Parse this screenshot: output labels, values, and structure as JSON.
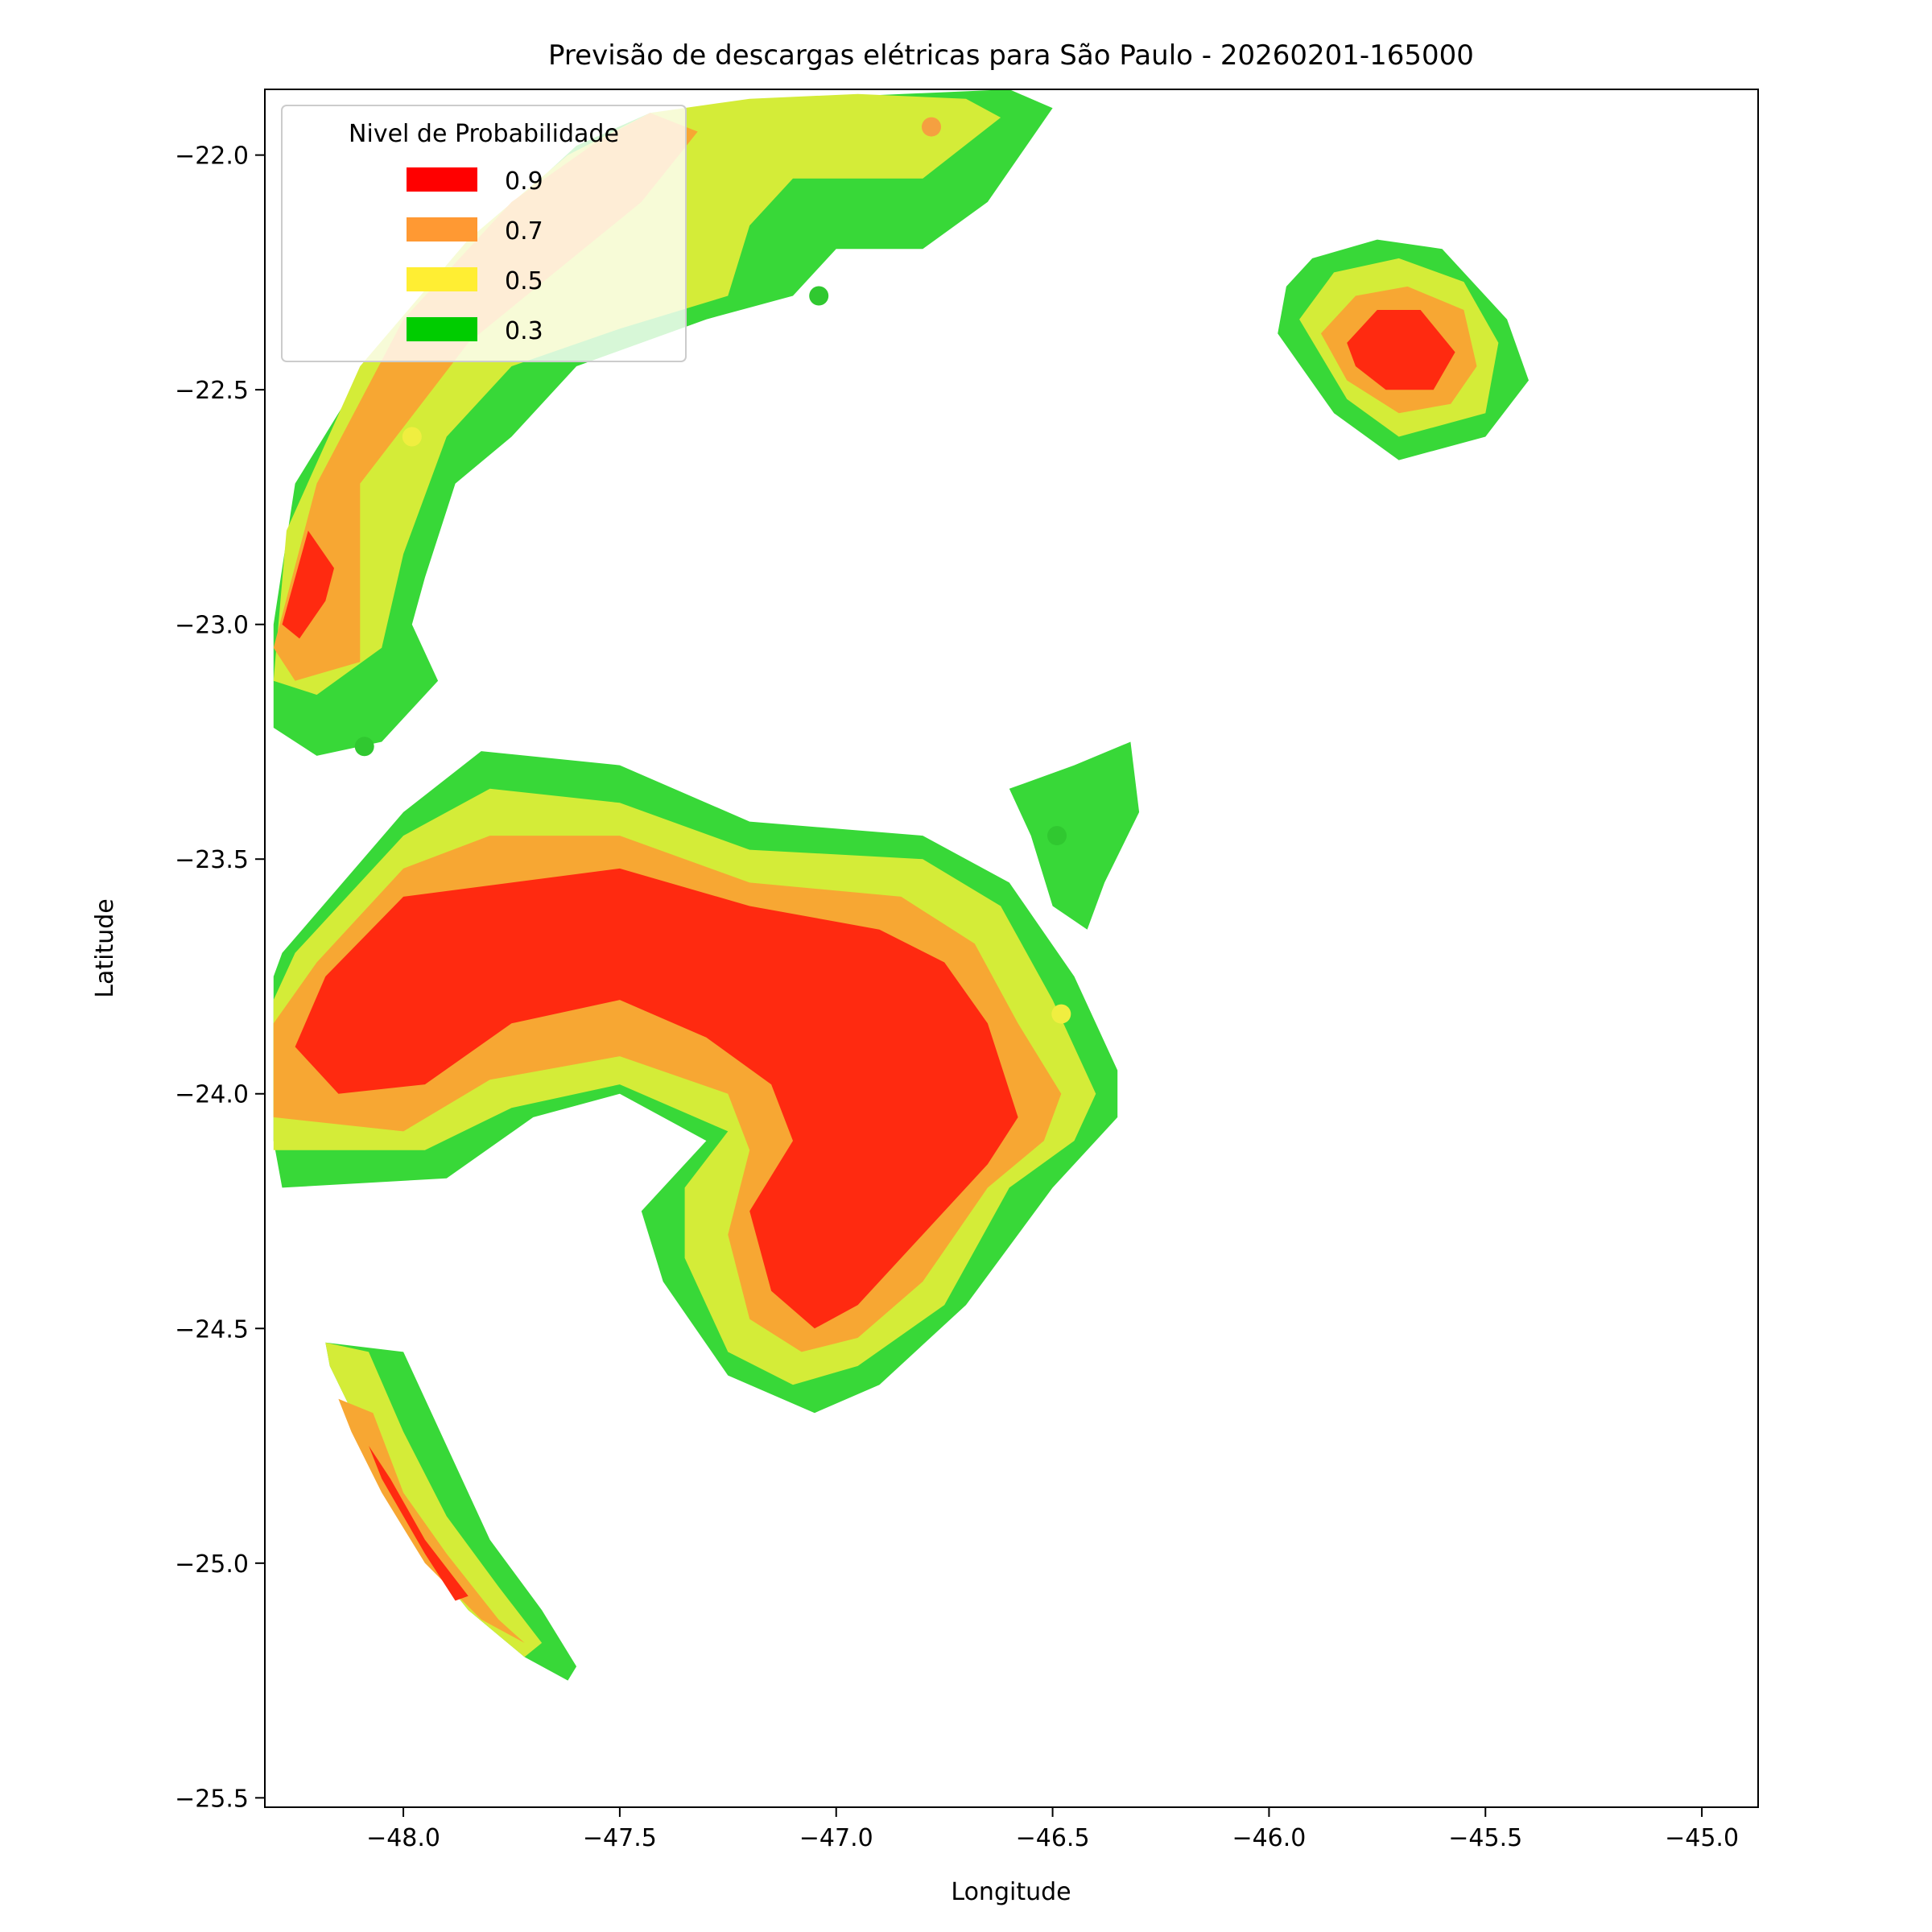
{
  "chart_data": {
    "type": "contour",
    "title": "Previsão de descargas elétricas para São Paulo - 20260201-165000",
    "xlabel": "Longitude",
    "ylabel": "Latitude",
    "xlim": [
      -48.32,
      -44.87
    ],
    "ylim": [
      -25.52,
      -21.86
    ],
    "xticks": [
      -48.0,
      -47.5,
      -47.0,
      -46.5,
      -46.0,
      -45.5,
      -45.0
    ],
    "xtick_labels": [
      "−48.0",
      "−47.5",
      "−47.0",
      "−46.5",
      "−46.0",
      "−45.5",
      "−45.0"
    ],
    "yticks": [
      -22.0,
      -22.5,
      -23.0,
      -23.5,
      -24.0,
      -24.5,
      -25.0,
      -25.5
    ],
    "ytick_labels": [
      "−22.0",
      "−22.5",
      "−23.0",
      "−23.5",
      "−24.0",
      "−24.5",
      "−25.0",
      "−25.5"
    ],
    "grid": false,
    "legend": {
      "title": "Nivel de Probabilidade",
      "placement": "top-left",
      "entries": [
        {
          "label": "0.9",
          "color": "#ff0000"
        },
        {
          "label": "0.7",
          "color": "#ff9933"
        },
        {
          "label": "0.5",
          "color": "#ffee33"
        },
        {
          "label": "0.3",
          "color": "#00cc00"
        }
      ]
    },
    "level_colors": {
      "0.3": "#38d838",
      "0.5": "#d4ec38",
      "0.7": "#f7a733",
      "0.9": "#ff2a10"
    },
    "regions": [
      {
        "id": "north-arc",
        "level": 0.3,
        "polygon": [
          [
            -47.43,
            -21.91
          ],
          [
            -47.1,
            -21.88
          ],
          [
            -46.6,
            -21.86
          ],
          [
            -46.5,
            -21.9
          ],
          [
            -46.65,
            -22.1
          ],
          [
            -46.8,
            -22.2
          ],
          [
            -47.0,
            -22.2
          ],
          [
            -47.1,
            -22.3
          ],
          [
            -47.3,
            -22.35
          ],
          [
            -47.6,
            -22.45
          ],
          [
            -47.75,
            -22.6
          ],
          [
            -47.88,
            -22.7
          ],
          [
            -47.95,
            -22.9
          ],
          [
            -47.98,
            -23.0
          ],
          [
            -47.92,
            -23.12
          ],
          [
            -48.05,
            -23.25
          ],
          [
            -48.2,
            -23.28
          ],
          [
            -48.3,
            -23.22
          ],
          [
            -48.3,
            -23.0
          ],
          [
            -48.25,
            -22.7
          ],
          [
            -48.05,
            -22.4
          ],
          [
            -47.8,
            -22.15
          ],
          [
            -47.6,
            -21.98
          ]
        ]
      },
      {
        "id": "north-arc",
        "level": 0.5,
        "polygon": [
          [
            -47.43,
            -21.91
          ],
          [
            -47.2,
            -21.88
          ],
          [
            -46.95,
            -21.87
          ],
          [
            -46.7,
            -21.88
          ],
          [
            -46.62,
            -21.92
          ],
          [
            -46.8,
            -22.05
          ],
          [
            -47.1,
            -22.05
          ],
          [
            -47.2,
            -22.15
          ],
          [
            -47.25,
            -22.3
          ],
          [
            -47.5,
            -22.37
          ],
          [
            -47.75,
            -22.45
          ],
          [
            -47.9,
            -22.6
          ],
          [
            -48.0,
            -22.85
          ],
          [
            -48.05,
            -23.05
          ],
          [
            -48.2,
            -23.15
          ],
          [
            -48.3,
            -23.12
          ],
          [
            -48.27,
            -22.8
          ],
          [
            -48.1,
            -22.45
          ],
          [
            -47.85,
            -22.18
          ],
          [
            -47.62,
            -22.0
          ]
        ]
      },
      {
        "id": "north-arc",
        "level": 0.7,
        "polygon": [
          [
            -47.43,
            -21.91
          ],
          [
            -47.32,
            -21.95
          ],
          [
            -47.45,
            -22.1
          ],
          [
            -47.65,
            -22.25
          ],
          [
            -47.85,
            -22.4
          ],
          [
            -48.1,
            -22.7
          ],
          [
            -48.1,
            -23.08
          ],
          [
            -48.25,
            -23.12
          ],
          [
            -48.3,
            -23.05
          ],
          [
            -48.2,
            -22.7
          ],
          [
            -48.0,
            -22.35
          ],
          [
            -47.75,
            -22.1
          ],
          [
            -47.55,
            -21.97
          ]
        ]
      },
      {
        "id": "north-arc",
        "level": 0.9,
        "polygon": [
          [
            -48.16,
            -22.88
          ],
          [
            -48.18,
            -22.95
          ],
          [
            -48.24,
            -23.03
          ],
          [
            -48.28,
            -23.0
          ],
          [
            -48.22,
            -22.8
          ]
        ]
      },
      {
        "id": "northeast-cell",
        "level": 0.3,
        "polygon": [
          [
            -45.9,
            -22.22
          ],
          [
            -45.75,
            -22.18
          ],
          [
            -45.6,
            -22.2
          ],
          [
            -45.45,
            -22.35
          ],
          [
            -45.4,
            -22.48
          ],
          [
            -45.5,
            -22.6
          ],
          [
            -45.7,
            -22.65
          ],
          [
            -45.85,
            -22.55
          ],
          [
            -45.98,
            -22.38
          ],
          [
            -45.96,
            -22.28
          ]
        ]
      },
      {
        "id": "northeast-cell",
        "level": 0.5,
        "polygon": [
          [
            -45.85,
            -22.25
          ],
          [
            -45.7,
            -22.22
          ],
          [
            -45.55,
            -22.27
          ],
          [
            -45.47,
            -22.4
          ],
          [
            -45.5,
            -22.55
          ],
          [
            -45.7,
            -22.6
          ],
          [
            -45.82,
            -22.52
          ],
          [
            -45.93,
            -22.35
          ]
        ]
      },
      {
        "id": "northeast-cell",
        "level": 0.7,
        "polygon": [
          [
            -45.8,
            -22.3
          ],
          [
            -45.68,
            -22.28
          ],
          [
            -45.55,
            -22.33
          ],
          [
            -45.52,
            -22.45
          ],
          [
            -45.58,
            -22.53
          ],
          [
            -45.7,
            -22.55
          ],
          [
            -45.82,
            -22.48
          ],
          [
            -45.88,
            -22.38
          ]
        ]
      },
      {
        "id": "northeast-cell",
        "level": 0.9,
        "polygon": [
          [
            -45.75,
            -22.33
          ],
          [
            -45.65,
            -22.33
          ],
          [
            -45.57,
            -22.42
          ],
          [
            -45.62,
            -22.5
          ],
          [
            -45.73,
            -22.5
          ],
          [
            -45.8,
            -22.45
          ],
          [
            -45.82,
            -22.4
          ]
        ]
      },
      {
        "id": "central-hook",
        "level": 0.3,
        "polygon": [
          [
            -48.28,
            -23.7
          ],
          [
            -48.0,
            -23.4
          ],
          [
            -47.82,
            -23.27
          ],
          [
            -47.5,
            -23.3
          ],
          [
            -47.2,
            -23.42
          ],
          [
            -46.8,
            -23.45
          ],
          [
            -46.6,
            -23.55
          ],
          [
            -46.45,
            -23.75
          ],
          [
            -46.35,
            -23.95
          ],
          [
            -46.35,
            -24.05
          ],
          [
            -46.5,
            -24.2
          ],
          [
            -46.7,
            -24.45
          ],
          [
            -46.9,
            -24.62
          ],
          [
            -47.05,
            -24.68
          ],
          [
            -47.25,
            -24.6
          ],
          [
            -47.4,
            -24.4
          ],
          [
            -47.45,
            -24.25
          ],
          [
            -47.3,
            -24.1
          ],
          [
            -47.5,
            -24.0
          ],
          [
            -47.7,
            -24.05
          ],
          [
            -47.9,
            -24.18
          ],
          [
            -48.28,
            -24.2
          ],
          [
            -48.3,
            -24.1
          ],
          [
            -48.3,
            -23.75
          ]
        ]
      },
      {
        "id": "central-hook",
        "level": 0.5,
        "polygon": [
          [
            -48.25,
            -23.7
          ],
          [
            -48.0,
            -23.45
          ],
          [
            -47.8,
            -23.35
          ],
          [
            -47.5,
            -23.38
          ],
          [
            -47.2,
            -23.48
          ],
          [
            -46.8,
            -23.5
          ],
          [
            -46.62,
            -23.6
          ],
          [
            -46.5,
            -23.8
          ],
          [
            -46.4,
            -24.0
          ],
          [
            -46.45,
            -24.1
          ],
          [
            -46.6,
            -24.2
          ],
          [
            -46.75,
            -24.45
          ],
          [
            -46.95,
            -24.58
          ],
          [
            -47.1,
            -24.62
          ],
          [
            -47.25,
            -24.55
          ],
          [
            -47.35,
            -24.35
          ],
          [
            -47.35,
            -24.2
          ],
          [
            -47.25,
            -24.08
          ],
          [
            -47.5,
            -23.98
          ],
          [
            -47.75,
            -24.03
          ],
          [
            -47.95,
            -24.12
          ],
          [
            -48.3,
            -24.12
          ],
          [
            -48.3,
            -23.8
          ]
        ]
      },
      {
        "id": "central-hook",
        "level": 0.7,
        "polygon": [
          [
            -48.2,
            -23.72
          ],
          [
            -48.0,
            -23.52
          ],
          [
            -47.8,
            -23.45
          ],
          [
            -47.5,
            -23.45
          ],
          [
            -47.2,
            -23.55
          ],
          [
            -46.85,
            -23.58
          ],
          [
            -46.68,
            -23.68
          ],
          [
            -46.58,
            -23.85
          ],
          [
            -46.48,
            -24.0
          ],
          [
            -46.52,
            -24.1
          ],
          [
            -46.65,
            -24.2
          ],
          [
            -46.8,
            -24.4
          ],
          [
            -46.95,
            -24.52
          ],
          [
            -47.08,
            -24.55
          ],
          [
            -47.2,
            -24.48
          ],
          [
            -47.25,
            -24.3
          ],
          [
            -47.2,
            -24.12
          ],
          [
            -47.25,
            -24.0
          ],
          [
            -47.5,
            -23.92
          ],
          [
            -47.8,
            -23.97
          ],
          [
            -48.0,
            -24.08
          ],
          [
            -48.3,
            -24.05
          ],
          [
            -48.3,
            -23.85
          ]
        ]
      },
      {
        "id": "central-hook",
        "level": 0.9,
        "polygon": [
          [
            -48.18,
            -23.75
          ],
          [
            -48.0,
            -23.58
          ],
          [
            -47.75,
            -23.55
          ],
          [
            -47.5,
            -23.52
          ],
          [
            -47.2,
            -23.6
          ],
          [
            -46.9,
            -23.65
          ],
          [
            -46.75,
            -23.72
          ],
          [
            -46.65,
            -23.85
          ],
          [
            -46.58,
            -24.05
          ],
          [
            -46.65,
            -24.15
          ],
          [
            -46.75,
            -24.25
          ],
          [
            -46.85,
            -24.35
          ],
          [
            -46.95,
            -24.45
          ],
          [
            -47.05,
            -24.5
          ],
          [
            -47.15,
            -24.42
          ],
          [
            -47.2,
            -24.25
          ],
          [
            -47.1,
            -24.1
          ],
          [
            -47.15,
            -23.98
          ],
          [
            -47.3,
            -23.88
          ],
          [
            -47.5,
            -23.8
          ],
          [
            -47.75,
            -23.85
          ],
          [
            -47.95,
            -23.98
          ],
          [
            -48.15,
            -24.0
          ],
          [
            -48.25,
            -23.9
          ]
        ]
      },
      {
        "id": "southwest-strip",
        "level": 0.3,
        "polygon": [
          [
            -48.18,
            -24.53
          ],
          [
            -48.0,
            -24.55
          ],
          [
            -47.9,
            -24.75
          ],
          [
            -47.8,
            -24.95
          ],
          [
            -47.68,
            -25.1
          ],
          [
            -47.6,
            -25.22
          ],
          [
            -47.62,
            -25.25
          ],
          [
            -47.72,
            -25.2
          ],
          [
            -47.85,
            -25.1
          ],
          [
            -47.98,
            -24.95
          ],
          [
            -48.08,
            -24.75
          ],
          [
            -48.17,
            -24.58
          ]
        ]
      },
      {
        "id": "southwest-strip",
        "level": 0.5,
        "polygon": [
          [
            -48.18,
            -24.53
          ],
          [
            -48.08,
            -24.55
          ],
          [
            -48.0,
            -24.72
          ],
          [
            -47.9,
            -24.9
          ],
          [
            -47.78,
            -25.05
          ],
          [
            -47.68,
            -25.17
          ],
          [
            -47.72,
            -25.2
          ],
          [
            -47.85,
            -25.1
          ],
          [
            -47.98,
            -24.95
          ],
          [
            -48.08,
            -24.75
          ],
          [
            -48.17,
            -24.58
          ]
        ]
      },
      {
        "id": "southwest-strip",
        "level": 0.7,
        "polygon": [
          [
            -48.15,
            -24.65
          ],
          [
            -48.07,
            -24.68
          ],
          [
            -48.0,
            -24.85
          ],
          [
            -47.9,
            -24.98
          ],
          [
            -47.78,
            -25.12
          ],
          [
            -47.72,
            -25.17
          ],
          [
            -47.82,
            -25.12
          ],
          [
            -47.95,
            -25.0
          ],
          [
            -48.05,
            -24.85
          ],
          [
            -48.12,
            -24.72
          ]
        ]
      },
      {
        "id": "southwest-strip",
        "level": 0.9,
        "polygon": [
          [
            -48.08,
            -24.75
          ],
          [
            -48.05,
            -24.82
          ],
          [
            -47.95,
            -24.98
          ],
          [
            -47.88,
            -25.08
          ],
          [
            -47.85,
            -25.07
          ],
          [
            -47.95,
            -24.95
          ],
          [
            -48.03,
            -24.82
          ]
        ]
      },
      {
        "id": "east-tail",
        "level": 0.3,
        "polygon": [
          [
            -46.6,
            -23.35
          ],
          [
            -46.45,
            -23.3
          ],
          [
            -46.32,
            -23.25
          ],
          [
            -46.3,
            -23.4
          ],
          [
            -46.38,
            -23.55
          ],
          [
            -46.42,
            -23.65
          ],
          [
            -46.5,
            -23.6
          ],
          [
            -46.55,
            -23.45
          ]
        ]
      }
    ],
    "scatter": [
      {
        "x": -46.78,
        "y": -21.94,
        "level": 0.7
      },
      {
        "x": -47.04,
        "y": -22.3,
        "level": 0.3
      },
      {
        "x": -47.98,
        "y": -22.6,
        "level": 0.5
      },
      {
        "x": -48.09,
        "y": -23.26,
        "level": 0.3
      },
      {
        "x": -46.49,
        "y": -23.45,
        "level": 0.3
      },
      {
        "x": -46.48,
        "y": -23.83,
        "level": 0.5
      }
    ],
    "scatter_colors": {
      "0.3": "#30c830",
      "0.5": "#f0ee40",
      "0.7": "#f5a040"
    }
  }
}
